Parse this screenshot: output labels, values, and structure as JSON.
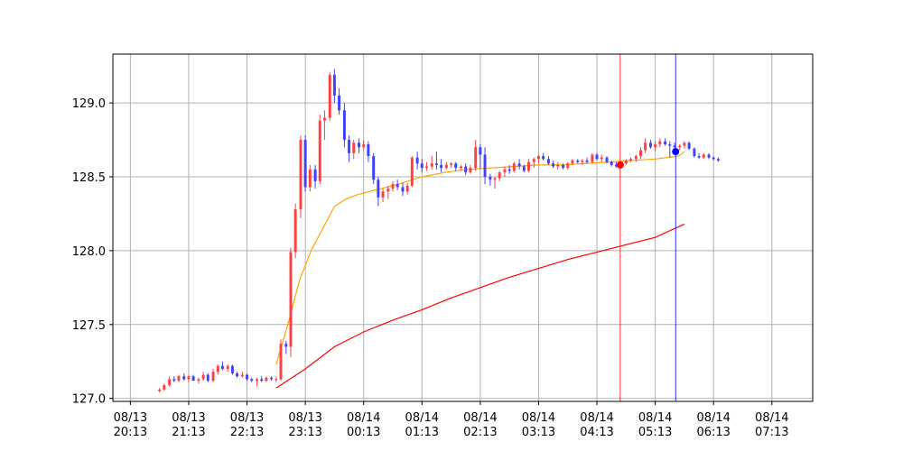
{
  "chart_data": {
    "type": "candlestick",
    "title": "",
    "xlabel": "",
    "ylabel": "",
    "ylim": [
      126.98,
      129.33
    ],
    "grid": true,
    "x_tick_labels": [
      "08/13\n20:13",
      "08/13\n21:13",
      "08/13\n22:13",
      "08/13\n23:13",
      "08/14\n00:13",
      "08/14\n01:13",
      "08/14\n02:13",
      "08/14\n03:13",
      "08/14\n04:13",
      "08/14\n05:13",
      "08/14\n06:13",
      "08/14\n07:13"
    ],
    "y_ticks": [
      127.0,
      127.5,
      128.0,
      128.5,
      129.0
    ],
    "y_tick_labels": [
      "127.0",
      "127.5",
      "128.0",
      "128.5",
      "129.0"
    ],
    "x_range_hours": [
      -0.3,
      11.7
    ],
    "x_unit": "hours since 08/13 20:13",
    "candle_interval_min": 5,
    "candles": [
      [
        0.5,
        127.05,
        127.07,
        127.04,
        127.06
      ],
      [
        0.58,
        127.06,
        127.1,
        127.05,
        127.09
      ],
      [
        0.67,
        127.09,
        127.15,
        127.08,
        127.13
      ],
      [
        0.75,
        127.13,
        127.15,
        127.11,
        127.12
      ],
      [
        0.83,
        127.12,
        127.16,
        127.11,
        127.15
      ],
      [
        0.92,
        127.15,
        127.17,
        127.12,
        127.13
      ],
      [
        1.0,
        127.13,
        127.16,
        127.11,
        127.15
      ],
      [
        1.08,
        127.15,
        127.16,
        127.12,
        127.12
      ],
      [
        1.17,
        127.12,
        127.14,
        127.1,
        127.13
      ],
      [
        1.25,
        127.13,
        127.18,
        127.12,
        127.16
      ],
      [
        1.33,
        127.16,
        127.17,
        127.11,
        127.12
      ],
      [
        1.42,
        127.12,
        127.2,
        127.11,
        127.18
      ],
      [
        1.5,
        127.18,
        127.23,
        127.16,
        127.22
      ],
      [
        1.58,
        127.22,
        127.25,
        127.19,
        127.2
      ],
      [
        1.67,
        127.2,
        127.23,
        127.18,
        127.22
      ],
      [
        1.75,
        127.22,
        127.23,
        127.16,
        127.17
      ],
      [
        1.83,
        127.17,
        127.18,
        127.14,
        127.15
      ],
      [
        1.92,
        127.15,
        127.18,
        127.14,
        127.16
      ],
      [
        2.0,
        127.16,
        127.17,
        127.12,
        127.13
      ],
      [
        2.08,
        127.13,
        127.14,
        127.11,
        127.12
      ],
      [
        2.17,
        127.12,
        127.14,
        127.08,
        127.13
      ],
      [
        2.25,
        127.13,
        127.15,
        127.11,
        127.12
      ],
      [
        2.33,
        127.12,
        127.15,
        127.11,
        127.14
      ],
      [
        2.42,
        127.14,
        127.15,
        127.12,
        127.13
      ],
      [
        2.5,
        127.13,
        127.15,
        127.11,
        127.13
      ],
      [
        2.58,
        127.13,
        127.4,
        127.12,
        127.37
      ],
      [
        2.67,
        127.37,
        127.39,
        127.3,
        127.35
      ],
      [
        2.75,
        127.35,
        128.02,
        127.28,
        127.99
      ],
      [
        2.83,
        127.99,
        128.32,
        127.95,
        128.28
      ],
      [
        2.92,
        128.28,
        128.78,
        128.22,
        128.75
      ],
      [
        3.0,
        128.75,
        128.78,
        128.4,
        128.43
      ],
      [
        3.08,
        128.43,
        128.58,
        128.4,
        128.55
      ],
      [
        3.17,
        128.55,
        128.58,
        128.42,
        128.47
      ],
      [
        3.25,
        128.47,
        128.92,
        128.45,
        128.88
      ],
      [
        3.33,
        128.88,
        128.95,
        128.75,
        128.9
      ],
      [
        3.42,
        128.9,
        129.21,
        128.88,
        129.19
      ],
      [
        3.5,
        129.19,
        129.23,
        129.0,
        129.05
      ],
      [
        3.58,
        129.05,
        129.1,
        128.92,
        128.95
      ],
      [
        3.67,
        128.95,
        129.0,
        128.7,
        128.75
      ],
      [
        3.75,
        128.75,
        128.78,
        128.6,
        128.66
      ],
      [
        3.83,
        128.66,
        128.75,
        128.62,
        128.73
      ],
      [
        3.92,
        128.73,
        128.76,
        128.66,
        128.7
      ],
      [
        4.0,
        128.7,
        128.75,
        128.68,
        128.72
      ],
      [
        4.08,
        128.72,
        128.74,
        128.6,
        128.64
      ],
      [
        4.17,
        128.64,
        128.66,
        128.45,
        128.48
      ],
      [
        4.25,
        128.48,
        128.5,
        128.3,
        128.36
      ],
      [
        4.33,
        128.36,
        128.42,
        128.33,
        128.4
      ],
      [
        4.42,
        128.4,
        128.44,
        128.35,
        128.42
      ],
      [
        4.5,
        128.42,
        128.47,
        128.4,
        128.45
      ],
      [
        4.58,
        128.45,
        128.48,
        128.41,
        128.43
      ],
      [
        4.67,
        128.43,
        128.46,
        128.37,
        128.4
      ],
      [
        4.75,
        128.4,
        128.46,
        128.38,
        128.44
      ],
      [
        4.83,
        128.44,
        128.64,
        128.43,
        128.63
      ],
      [
        4.92,
        128.63,
        128.67,
        128.55,
        128.59
      ],
      [
        5.0,
        128.59,
        128.62,
        128.53,
        128.56
      ],
      [
        5.08,
        128.56,
        128.6,
        128.54,
        128.57
      ],
      [
        5.17,
        128.57,
        128.64,
        128.55,
        128.59
      ],
      [
        5.25,
        128.59,
        128.67,
        128.55,
        128.58
      ],
      [
        5.33,
        128.58,
        128.62,
        128.53,
        128.56
      ],
      [
        5.42,
        128.56,
        128.6,
        128.55,
        128.58
      ],
      [
        5.5,
        128.58,
        128.6,
        128.56,
        128.59
      ],
      [
        5.58,
        128.59,
        128.6,
        128.54,
        128.56
      ],
      [
        5.67,
        128.56,
        128.58,
        128.54,
        128.57
      ],
      [
        5.75,
        128.57,
        128.59,
        128.51,
        128.53
      ],
      [
        5.83,
        128.53,
        128.58,
        128.52,
        128.56
      ],
      [
        5.92,
        128.56,
        128.75,
        128.54,
        128.7
      ],
      [
        6.0,
        128.7,
        128.72,
        128.55,
        128.65
      ],
      [
        6.08,
        128.65,
        128.7,
        128.45,
        128.5
      ],
      [
        6.17,
        128.5,
        128.52,
        128.44,
        128.48
      ],
      [
        6.25,
        128.48,
        128.5,
        128.42,
        128.49
      ],
      [
        6.33,
        128.49,
        128.54,
        128.47,
        128.53
      ],
      [
        6.42,
        128.53,
        128.57,
        128.5,
        128.55
      ],
      [
        6.5,
        128.55,
        128.58,
        128.52,
        128.54
      ],
      [
        6.58,
        128.54,
        128.6,
        128.53,
        128.59
      ],
      [
        6.67,
        128.59,
        128.62,
        128.55,
        128.57
      ],
      [
        6.75,
        128.57,
        128.58,
        128.53,
        128.54
      ],
      [
        6.83,
        128.54,
        128.62,
        128.53,
        128.6
      ],
      [
        6.92,
        128.6,
        128.63,
        128.56,
        128.62
      ],
      [
        7.0,
        128.62,
        128.65,
        128.59,
        128.64
      ],
      [
        7.08,
        128.64,
        128.66,
        128.61,
        128.62
      ],
      [
        7.17,
        128.62,
        128.64,
        128.58,
        128.59
      ],
      [
        7.25,
        128.59,
        128.61,
        128.56,
        128.57
      ],
      [
        7.33,
        128.57,
        128.6,
        128.55,
        128.58
      ],
      [
        7.42,
        128.58,
        128.59,
        128.55,
        128.56
      ],
      [
        7.5,
        128.56,
        128.6,
        128.55,
        128.59
      ],
      [
        7.58,
        128.59,
        128.62,
        128.58,
        128.61
      ],
      [
        7.67,
        128.61,
        128.62,
        128.59,
        128.6
      ],
      [
        7.75,
        128.6,
        128.62,
        128.58,
        128.61
      ],
      [
        7.83,
        128.61,
        128.63,
        128.59,
        128.6
      ],
      [
        7.92,
        128.6,
        128.66,
        128.59,
        128.65
      ],
      [
        8.0,
        128.65,
        128.66,
        128.61,
        128.62
      ],
      [
        8.08,
        128.62,
        128.65,
        128.6,
        128.63
      ],
      [
        8.17,
        128.63,
        128.64,
        128.59,
        128.6
      ],
      [
        8.25,
        128.6,
        128.61,
        128.57,
        128.58
      ],
      [
        8.33,
        128.58,
        128.6,
        128.56,
        128.57
      ],
      [
        8.42,
        128.57,
        128.6,
        128.56,
        128.59
      ],
      [
        8.5,
        128.59,
        128.62,
        128.58,
        128.61
      ],
      [
        8.58,
        128.61,
        128.63,
        128.6,
        128.62
      ],
      [
        8.67,
        128.62,
        128.65,
        128.6,
        128.64
      ],
      [
        8.75,
        128.64,
        128.7,
        128.62,
        128.68
      ],
      [
        8.83,
        128.68,
        128.76,
        128.66,
        128.73
      ],
      [
        8.92,
        128.73,
        128.75,
        128.69,
        128.7
      ],
      [
        9.0,
        128.7,
        128.74,
        128.67,
        128.72
      ],
      [
        9.08,
        128.72,
        128.76,
        128.7,
        128.74
      ],
      [
        9.17,
        128.74,
        128.76,
        128.71,
        128.72
      ],
      [
        9.25,
        128.72,
        128.74,
        128.63,
        128.71
      ],
      [
        9.33,
        128.71,
        128.73,
        128.68,
        128.7
      ],
      [
        9.42,
        128.7,
        128.72,
        128.68,
        128.71
      ],
      [
        9.5,
        128.71,
        128.74,
        128.69,
        128.73
      ],
      [
        9.58,
        128.73,
        128.74,
        128.68,
        128.69
      ],
      [
        9.67,
        128.69,
        128.7,
        128.63,
        128.64
      ],
      [
        9.75,
        128.64,
        128.66,
        128.62,
        128.63
      ],
      [
        9.83,
        128.63,
        128.66,
        128.62,
        128.65
      ],
      [
        9.92,
        128.65,
        128.66,
        128.62,
        128.63
      ],
      [
        10.0,
        128.63,
        128.64,
        128.61,
        128.62
      ],
      [
        10.08,
        128.62,
        128.63,
        128.6,
        128.61
      ]
    ],
    "series": [
      {
        "color": "#ffa500",
        "x": [
          2.5,
          2.7,
          2.9,
          3.1,
          3.3,
          3.5,
          3.7,
          3.9,
          4.1,
          4.3,
          4.6,
          5.0,
          5.4,
          5.8,
          6.2,
          6.6,
          7.0,
          7.4,
          7.8,
          8.2,
          8.6,
          9.0,
          9.4,
          9.5
        ],
        "y": [
          127.23,
          127.5,
          127.8,
          128.0,
          128.15,
          128.3,
          128.35,
          128.38,
          128.4,
          128.42,
          128.45,
          128.5,
          128.53,
          128.55,
          128.56,
          128.57,
          128.58,
          128.58,
          128.59,
          128.6,
          128.61,
          128.62,
          128.64,
          128.67
        ]
      },
      {
        "color": "#ff0000",
        "x": [
          2.5,
          3.0,
          3.5,
          4.0,
          4.5,
          5.0,
          5.5,
          6.0,
          6.5,
          7.0,
          7.5,
          8.0,
          8.5,
          9.0,
          9.5
        ],
        "y": [
          127.07,
          127.2,
          127.35,
          127.45,
          127.53,
          127.6,
          127.68,
          127.75,
          127.82,
          127.88,
          127.94,
          127.99,
          128.04,
          128.09,
          128.18
        ]
      }
    ],
    "vlines": [
      {
        "x": 8.4,
        "color": "#ff0000"
      },
      {
        "x": 9.35,
        "color": "#0000ff"
      }
    ],
    "markers": [
      {
        "x": 8.4,
        "y": 128.58,
        "color": "#ff0000"
      },
      {
        "x": 9.35,
        "y": 128.67,
        "color": "#0000ff"
      }
    ],
    "colors": {
      "up": "#ff4040",
      "down": "#4040ff",
      "grid": "#b0b0b0",
      "axes": "#000000"
    }
  }
}
